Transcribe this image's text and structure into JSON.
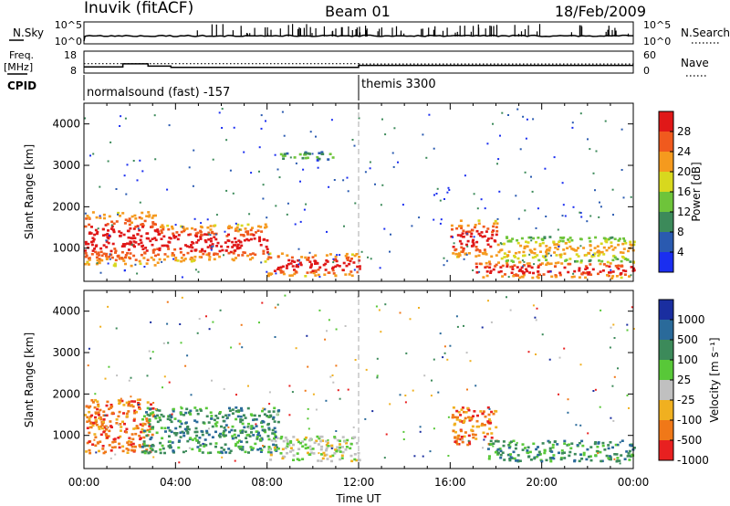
{
  "header": {
    "station": "Inuvik (fitACF)",
    "beam": "Beam 01",
    "date": "18/Feb/2009"
  },
  "side_labels": {
    "nsky": "N.Sky",
    "freq": "Freq.",
    "freq_unit": "[MHz]",
    "cpid": "CPID",
    "nsearch": "N.Search",
    "nave": "Nave"
  },
  "small_ticks": {
    "nsky_top": "10^5",
    "nsky_bottom": "10^0",
    "freq_top": "18",
    "freq_bottom": "8",
    "nave_top": "60",
    "nave_bottom": "0"
  },
  "cpid_segments": [
    {
      "start_hour": 0,
      "label": "normalsound (fast) -157"
    },
    {
      "start_hour": 12,
      "label": "themis 3300"
    }
  ],
  "chart_data": [
    {
      "type": "heatmap",
      "title": "",
      "xlabel": "",
      "ylabel": "Slant Range [km]",
      "xlim": [
        0,
        24
      ],
      "ylim": [
        200,
        4500
      ],
      "yticks": [
        "1000",
        "2000",
        "3000",
        "4000"
      ],
      "colorbar": {
        "label": "Power [dB]",
        "ticks": [
          "4",
          "8",
          "12",
          "16",
          "20",
          "24",
          "28"
        ],
        "colors": [
          "#1a2ef0",
          "#2a5ab0",
          "#3c8a5a",
          "#6ec43a",
          "#d8d81e",
          "#f59a1e",
          "#f05a1e",
          "#e01818"
        ]
      },
      "regions": [
        {
          "x": [
            0,
            3.2
          ],
          "y": [
            600,
            1900
          ],
          "level": "high"
        },
        {
          "x": [
            3.2,
            8.0
          ],
          "y": [
            700,
            1600
          ],
          "level": "high"
        },
        {
          "x": [
            8.0,
            12.0
          ],
          "y": [
            350,
            900
          ],
          "level": "high"
        },
        {
          "x": [
            8.5,
            11.0
          ],
          "y": [
            3150,
            3350
          ],
          "level": "low"
        },
        {
          "x": [
            16.0,
            18.0
          ],
          "y": [
            800,
            1700
          ],
          "level": "high"
        },
        {
          "x": [
            17.0,
            24.0
          ],
          "y": [
            300,
            700
          ],
          "level": "high"
        },
        {
          "x": [
            18.0,
            24.0
          ],
          "y": [
            700,
            1300
          ],
          "level": "medium"
        }
      ]
    },
    {
      "type": "heatmap",
      "title": "",
      "xlabel": "Time UT",
      "ylabel": "Slant Range [km]",
      "xlim": [
        0,
        24
      ],
      "ylim": [
        200,
        4500
      ],
      "xticks": [
        "00:00",
        "04:00",
        "08:00",
        "12:00",
        "16:00",
        "20:00",
        "00:00"
      ],
      "yticks": [
        "1000",
        "2000",
        "3000",
        "4000"
      ],
      "colorbar": {
        "label": "Velocity [m s⁻¹]",
        "ticks": [
          "1000",
          "500",
          "100",
          "25",
          "-25",
          "-100",
          "-500",
          "-1000"
        ],
        "colors": [
          "#1a2ea0",
          "#2a6a9a",
          "#3c8a5a",
          "#58c838",
          "#c0c0c0",
          "#f0b020",
          "#f07818",
          "#e82020"
        ]
      },
      "regions": [
        {
          "x": [
            0,
            3.0
          ],
          "y": [
            600,
            1900
          ],
          "sign": "negative"
        },
        {
          "x": [
            2.5,
            8.5
          ],
          "y": [
            600,
            1700
          ],
          "sign": "positive"
        },
        {
          "x": [
            8.0,
            12.0
          ],
          "y": [
            400,
            1000
          ],
          "sign": "near-zero"
        },
        {
          "x": [
            16.0,
            18.0
          ],
          "y": [
            800,
            1700
          ],
          "sign": "negative"
        },
        {
          "x": [
            17.5,
            24.0
          ],
          "y": [
            400,
            900
          ],
          "sign": "positive"
        }
      ]
    }
  ]
}
